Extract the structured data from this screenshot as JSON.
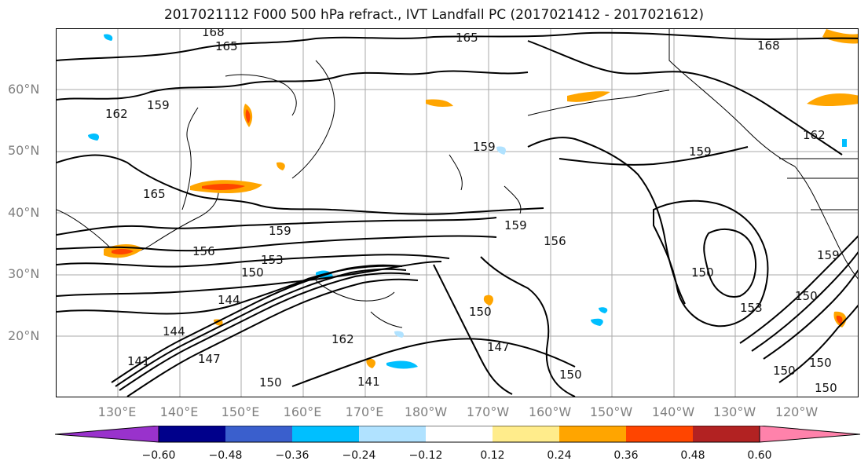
{
  "title": "2017021112 F000 500 hPa refract., IVT Landfall PC (2017021412 - 2017021612)",
  "lat_labels": [
    "60°N",
    "50°N",
    "40°N",
    "30°N",
    "20°N"
  ],
  "lon_labels": [
    "130°E",
    "140°E",
    "150°E",
    "160°E",
    "170°E",
    "180°W",
    "170°W",
    "160°W",
    "150°W",
    "140°W",
    "130°W",
    "120°W"
  ],
  "contour_labels": [
    "168",
    "165",
    "165",
    "168",
    "162",
    "159",
    "159",
    "159",
    "162",
    "165",
    "159",
    "156",
    "153",
    "150",
    "159",
    "156",
    "150",
    "144",
    "144",
    "141",
    "147",
    "150",
    "150",
    "150",
    "153",
    "150",
    "159",
    "150",
    "150",
    "141",
    "162",
    "150",
    "147"
  ],
  "colorbar": {
    "colors": [
      "#9932cc",
      "#00008b",
      "#3a5fcd",
      "#00bfff",
      "#b0e2ff",
      "#ffffff",
      "#ffec8b",
      "#ffa500",
      "#ff4500",
      "#b22222",
      "#ff82ab"
    ],
    "tick_labels": [
      "−0.60",
      "−0.48",
      "−0.36",
      "−0.24",
      "−0.12",
      "0.12",
      "0.24",
      "0.36",
      "0.48",
      "0.60"
    ]
  }
}
